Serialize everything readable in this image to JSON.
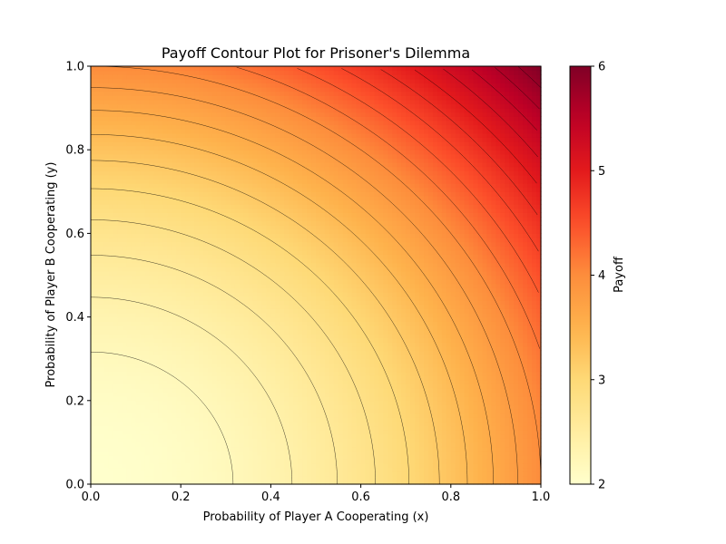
{
  "chart_data": {
    "type": "contour",
    "title": "Payoff Contour Plot for Prisoner's Dilemma",
    "xlabel": "Probability of Player A Cooperating (x)",
    "ylabel": "Probability of Player B Cooperating (y)",
    "xlim": [
      0,
      1
    ],
    "ylim": [
      0,
      1
    ],
    "xticks": [
      0.0,
      0.2,
      0.4,
      0.6,
      0.8,
      1.0
    ],
    "xtick_labels": [
      "0.0",
      "0.2",
      "0.4",
      "0.6",
      "0.8",
      "1.0"
    ],
    "yticks": [
      0.0,
      0.2,
      0.4,
      0.6,
      0.8,
      1.0
    ],
    "ytick_labels": [
      "0.0",
      "0.2",
      "0.4",
      "0.6",
      "0.8",
      "1.0"
    ],
    "function": "payoff = 2 + 2*x^2 + 2*y^2",
    "zlim": [
      2,
      6
    ],
    "contour_levels": [
      2.0,
      2.2,
      2.4,
      2.6,
      2.8,
      3.0,
      3.2,
      3.4,
      3.6,
      3.8,
      4.0,
      4.2,
      4.4,
      4.6,
      4.8,
      5.0,
      5.2,
      5.4,
      5.6,
      5.8
    ],
    "colormap": "YlOrRd",
    "colormap_stops": [
      "#ffffcc",
      "#ffeda0",
      "#fed976",
      "#feb24c",
      "#fd8d3c",
      "#fc4e2a",
      "#e31a1c",
      "#bd0026",
      "#800026"
    ],
    "colorbar": {
      "label": "Payoff",
      "ticks": [
        2,
        3,
        4,
        5,
        6
      ],
      "tick_labels": [
        "2",
        "3",
        "4",
        "5",
        "6"
      ]
    }
  }
}
